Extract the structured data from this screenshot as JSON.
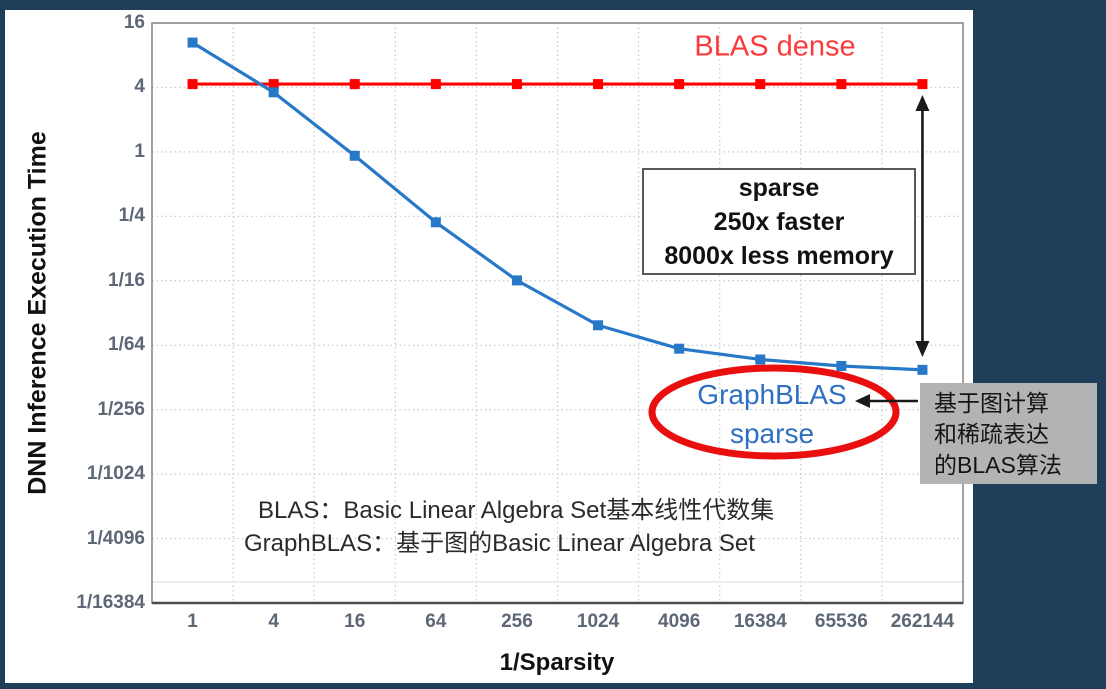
{
  "chart_data": {
    "type": "line",
    "title": "",
    "xlabel": "1/Sparsity",
    "ylabel": "DNN Inference Execution Time",
    "x_categories": [
      "1",
      "4",
      "16",
      "64",
      "256",
      "1024",
      "4096",
      "16384",
      "65536",
      "262144"
    ],
    "y_tick_labels": [
      "16",
      "4",
      "1",
      "1/4",
      "1/16",
      "1/64",
      "1/256",
      "1/1024",
      "1/4096",
      "1/16384"
    ],
    "y_scale": "log base 4",
    "ylim": [
      6.103515625e-05,
      16
    ],
    "grid": "dotted",
    "legend_position": "none (inline text labels)",
    "series": [
      {
        "name": "BLAS dense",
        "color": "#fe0000",
        "marker": "square",
        "values": [
          4.3,
          4.3,
          4.3,
          4.3,
          4.3,
          4.3,
          4.3,
          4.3,
          4.3,
          4.3
        ]
      },
      {
        "name": "GraphBLAS sparse",
        "color": "#2878c8",
        "marker": "square",
        "values": [
          10.5,
          3.6,
          0.92,
          0.22,
          0.063,
          0.024,
          0.0145,
          0.0115,
          0.01,
          0.0092
        ]
      }
    ]
  },
  "annotations": {
    "blas_dense_label": {
      "text": "BLAS dense",
      "color": "#fb3b3b"
    },
    "sparse_box": {
      "lines": [
        "sparse",
        "250x faster",
        "8000x less memory"
      ]
    },
    "graphblas_label": {
      "lines": [
        "GraphBLAS",
        "sparse"
      ],
      "color": "#2f6fc3"
    },
    "gray_box": {
      "lines": [
        "基于图计算",
        "和稀疏表达",
        "的BLAS算法"
      ],
      "bg": "#b3b3b3"
    },
    "footnote": {
      "lines": [
        "BLAS：Basic Linear Algebra Set基本线性代数集",
        "GraphBLAS：基于图的Basic Linear Algebra Set"
      ]
    }
  },
  "colors": {
    "background_navy": "#1f3e5a",
    "panel_white": "#ffffff",
    "gridline": "#c9c9c9",
    "plot_border": "#8a8a8a",
    "axis_line": "#4d4d4d",
    "tick_text": "#5d6776",
    "red_ellipse": "#e90f0f",
    "arrow_black": "#1a1a1a"
  }
}
